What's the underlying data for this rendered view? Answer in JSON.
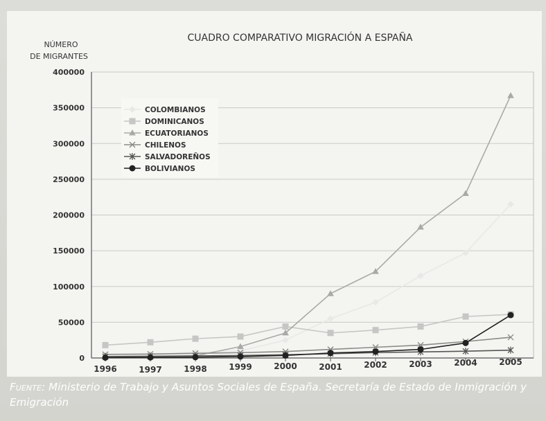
{
  "chart_data": {
    "type": "line",
    "title": "CUADRO COMPARATIVO MIGRACIÓN A ESPAÑA",
    "ylabel_lines": [
      "NÚMERO",
      "DE MIGRANTES"
    ],
    "xlabel": "",
    "x": [
      "1996",
      "1997",
      "1998",
      "1999",
      "2000",
      "2001",
      "2002",
      "2003",
      "2004",
      "2005"
    ],
    "ylim": [
      0,
      400000
    ],
    "yticks": [
      "400000",
      "350000",
      "300000",
      "250000",
      "200000",
      "150000",
      "100000",
      "50000",
      "0"
    ],
    "grid": true,
    "legend_position": "top-left",
    "series": [
      {
        "name": "COLOMBIANOS",
        "color": "#e8e8e6",
        "marker": "diamond",
        "values": [
          4000,
          5000,
          8000,
          10000,
          25000,
          55000,
          78000,
          115000,
          147000,
          215000
        ]
      },
      {
        "name": "DOMINICANOS",
        "color": "#c6c6c4",
        "marker": "square",
        "values": [
          18000,
          22000,
          27000,
          30000,
          44000,
          35000,
          39000,
          44000,
          58000,
          61000
        ]
      },
      {
        "name": "ECUATORIANOS",
        "color": "#a9a9a7",
        "marker": "triangle",
        "values": [
          1000,
          1500,
          3000,
          16000,
          35000,
          90000,
          121000,
          183000,
          230000,
          367000
        ]
      },
      {
        "name": "CHILENOS",
        "color": "#8a8a88",
        "marker": "x",
        "values": [
          5000,
          5500,
          6500,
          7500,
          9000,
          12000,
          15000,
          18000,
          23000,
          29000
        ]
      },
      {
        "name": "SALVADOREÑOS",
        "color": "#555553",
        "marker": "star",
        "values": [
          2000,
          2500,
          3000,
          3500,
          4500,
          6000,
          7500,
          8500,
          9500,
          11000
        ]
      },
      {
        "name": "BOLIVIANOS",
        "color": "#222222",
        "marker": "circle",
        "values": [
          500,
          800,
          1200,
          2000,
          3500,
          7000,
          9000,
          12000,
          21000,
          60000
        ]
      }
    ]
  },
  "caption": {
    "source_label": "Fuente:",
    "text": "Ministerio de Trabajo y Asuntos Sociales de España. Secretaría de Estado de Inmigración y Emigración"
  }
}
